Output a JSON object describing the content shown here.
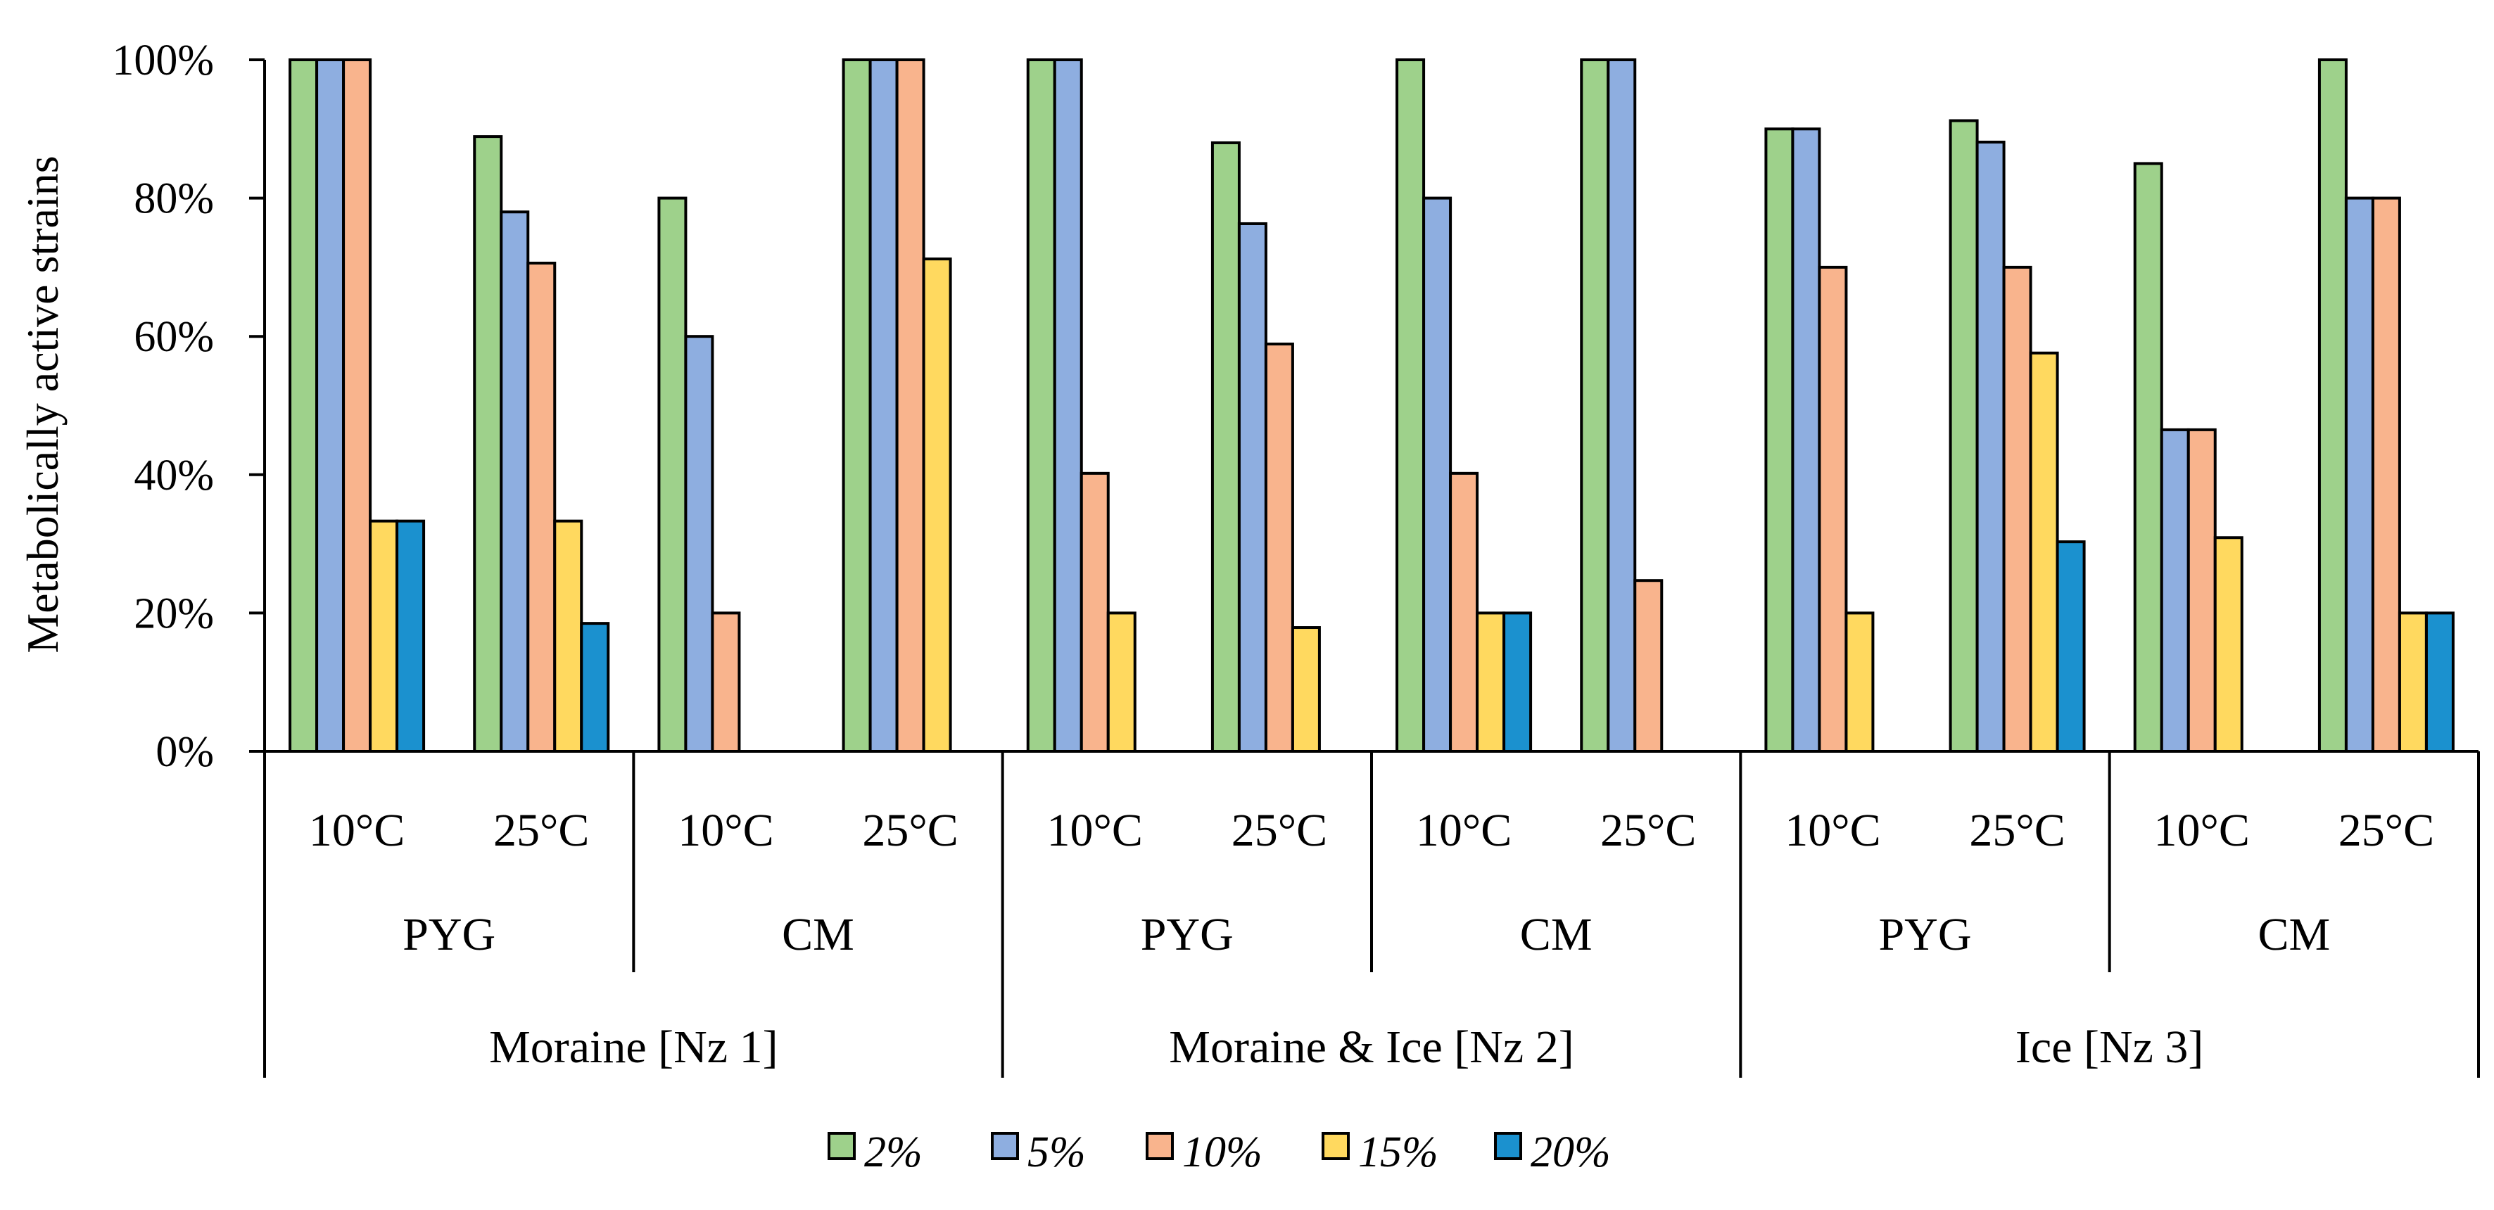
{
  "chart_data": {
    "type": "bar",
    "title": "",
    "ylabel": "Metabolically active strains",
    "xlabel": "",
    "ylim": [
      0,
      100
    ],
    "yticks": [
      "0%",
      "20%",
      "40%",
      "60%",
      "80%",
      "100%"
    ],
    "grid": false,
    "legend_position": "bottom",
    "groups": [
      {
        "label": "Moraine [Nz 1]",
        "media": [
          {
            "label": "PYG",
            "temps": [
              {
                "label": "10°C",
                "values": [
                  100,
                  100,
                  100,
                  33.3,
                  33.3
                ]
              },
              {
                "label": "25°C",
                "values": [
                  88.9,
                  78,
                  70.6,
                  33.3,
                  18.5
                ]
              }
            ]
          },
          {
            "label": "CM",
            "temps": [
              {
                "label": "10°C",
                "values": [
                  80,
                  60,
                  20,
                  0,
                  0
                ]
              },
              {
                "label": "25°C",
                "values": [
                  100,
                  100,
                  100,
                  71.2,
                  0
                ]
              }
            ]
          }
        ]
      },
      {
        "label": "Moraine & Ice [Nz 2]",
        "media": [
          {
            "label": "PYG",
            "temps": [
              {
                "label": "10°C",
                "values": [
                  100,
                  100,
                  40.2,
                  20,
                  0
                ]
              },
              {
                "label": "25°C",
                "values": [
                  88,
                  76.3,
                  58.9,
                  17.9,
                  0
                ]
              }
            ]
          },
          {
            "label": "CM",
            "temps": [
              {
                "label": "10°C",
                "values": [
                  100,
                  80,
                  40.2,
                  20,
                  20
                ]
              },
              {
                "label": "25°C",
                "values": [
                  100,
                  100,
                  24.7,
                  0,
                  0
                ]
              }
            ]
          }
        ]
      },
      {
        "label": "Ice [Nz 3]",
        "media": [
          {
            "label": "PYG",
            "temps": [
              {
                "label": "10°C",
                "values": [
                  90,
                  90,
                  70,
                  20,
                  0
                ]
              },
              {
                "label": "25°C",
                "values": [
                  91.2,
                  88.1,
                  70,
                  57.6,
                  30.3
                ]
              }
            ]
          },
          {
            "label": "CM",
            "temps": [
              {
                "label": "10°C",
                "values": [
                  85,
                  46.5,
                  46.5,
                  30.9,
                  0
                ]
              },
              {
                "label": "25°C",
                "values": [
                  100,
                  80,
                  80,
                  20,
                  20
                ]
              }
            ]
          }
        ]
      }
    ],
    "series": [
      {
        "name": "2%",
        "color": "#9ed18b"
      },
      {
        "name": "5%",
        "color": "#8eaee0"
      },
      {
        "name": "10%",
        "color": "#f9b48d"
      },
      {
        "name": "15%",
        "color": "#ffd95f"
      },
      {
        "name": "20%",
        "color": "#1b91cf"
      }
    ]
  }
}
